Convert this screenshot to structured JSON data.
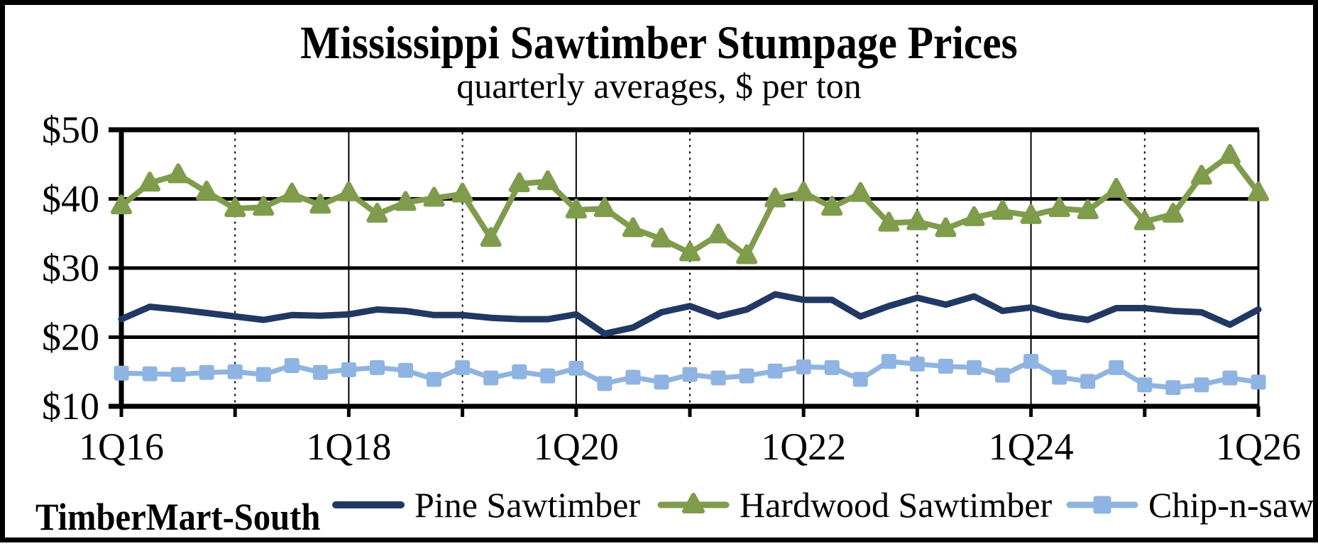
{
  "title": "Mississippi Sawtimber Stumpage Prices",
  "subtitle": "quarterly averages, $ per ton",
  "source_label": "TimberMart-South",
  "colors": {
    "pine": "#1F3864",
    "hardwood": "#7E9C49",
    "chip": "#8DB4E2",
    "grid": "#000000",
    "background": "#FFFFFF"
  },
  "legend": {
    "items": [
      {
        "label": "Pine Sawtimber"
      },
      {
        "label": "Hardwood Sawtimber"
      },
      {
        "label": "Chip-n-saw"
      }
    ]
  },
  "chart_data": {
    "type": "line",
    "title": "Mississippi Sawtimber Stumpage Prices",
    "subtitle": "quarterly averages, $ per ton",
    "ylabel": "$ per ton",
    "ylim": [
      10,
      50
    ],
    "y_tick_labels": [
      "$50",
      "$40",
      "$30",
      "$20",
      "$10"
    ],
    "y_tick_values": [
      50,
      40,
      30,
      20,
      10
    ],
    "x_tick_labels": [
      "1Q16",
      "1Q18",
      "1Q20",
      "1Q22",
      "1Q24",
      "1Q26"
    ],
    "x_quarters": [
      "1Q16",
      "2Q16",
      "3Q16",
      "4Q16",
      "1Q17",
      "2Q17",
      "3Q17",
      "4Q17",
      "1Q18",
      "2Q18",
      "3Q18",
      "4Q18",
      "1Q19",
      "2Q19",
      "3Q19",
      "4Q19",
      "1Q20",
      "2Q20",
      "3Q20",
      "4Q20",
      "1Q21",
      "2Q21",
      "3Q21",
      "4Q21",
      "1Q22",
      "2Q22",
      "3Q22",
      "4Q22",
      "1Q23",
      "2Q23",
      "3Q23",
      "4Q23",
      "1Q24",
      "2Q24",
      "3Q24",
      "4Q24",
      "1Q25",
      "2Q25",
      "3Q25",
      "4Q25",
      "1Q26"
    ],
    "grid": {
      "horizontal_values": [
        50,
        40,
        30,
        20,
        10
      ],
      "vertical_solid_years": [
        2018,
        2020,
        2022,
        2024
      ],
      "vertical_dashed_years": [
        2017,
        2019,
        2021,
        2023,
        2025
      ]
    },
    "legend_position": "bottom",
    "series": [
      {
        "name": "Pine Sawtimber",
        "color": "#1F3864",
        "marker": "none",
        "values": [
          22.6,
          24.4,
          24.0,
          23.5,
          23.0,
          22.5,
          23.2,
          23.1,
          23.3,
          24.0,
          23.8,
          23.2,
          23.2,
          22.8,
          22.6,
          22.6,
          23.3,
          20.5,
          21.4,
          23.6,
          24.5,
          23.0,
          24.0,
          26.2,
          25.4,
          25.4,
          23.0,
          24.5,
          25.7,
          24.7,
          25.9,
          23.8,
          24.3,
          23.1,
          22.5,
          24.2,
          24.2,
          23.8,
          23.6,
          21.8,
          24.0
        ]
      },
      {
        "name": "Hardwood Sawtimber",
        "color": "#7E9C49",
        "marker": "triangle",
        "values": [
          39.0,
          42.3,
          43.5,
          41.0,
          38.6,
          38.8,
          40.7,
          39.1,
          40.9,
          37.8,
          39.5,
          40.1,
          40.7,
          34.3,
          42.2,
          42.5,
          38.4,
          38.6,
          35.7,
          34.2,
          32.2,
          34.8,
          31.8,
          40.0,
          40.9,
          38.8,
          40.8,
          36.5,
          36.7,
          35.7,
          37.3,
          38.2,
          37.6,
          38.6,
          38.3,
          41.4,
          36.7,
          37.8,
          43.3,
          46.3,
          40.9
        ]
      },
      {
        "name": "Chip-n-saw",
        "color": "#8DB4E2",
        "marker": "square",
        "values": [
          14.8,
          14.7,
          14.6,
          14.9,
          15.0,
          14.6,
          15.9,
          14.9,
          15.3,
          15.6,
          15.2,
          13.9,
          15.6,
          14.1,
          15.0,
          14.4,
          15.5,
          13.3,
          14.2,
          13.5,
          14.6,
          14.1,
          14.4,
          15.1,
          15.7,
          15.6,
          13.9,
          16.5,
          16.1,
          15.8,
          15.6,
          14.5,
          16.5,
          14.2,
          13.6,
          15.6,
          13.1,
          12.7,
          13.1,
          14.1,
          13.5
        ]
      }
    ]
  }
}
